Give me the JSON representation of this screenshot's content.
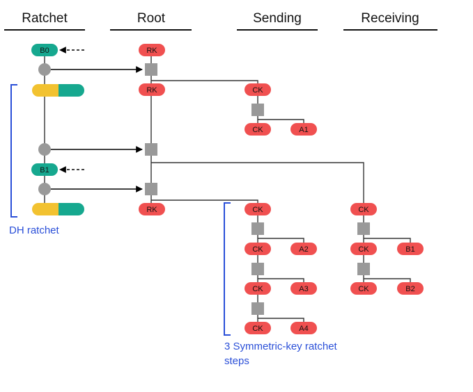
{
  "headers": {
    "ratchet": "Ratchet",
    "root": "Root",
    "sending": "Sending",
    "receiving": "Receiving"
  },
  "nodes": {
    "b0": "B0",
    "b1": "B1",
    "rk": "RK",
    "ck": "CK",
    "a1": "A1",
    "a2": "A2",
    "a3": "A3",
    "a4": "A4",
    "recv_b1": "B1",
    "recv_b2": "B2"
  },
  "annotations": {
    "dh_ratchet": "DH ratchet",
    "symmetric_line1": "3 Symmetric-key ratchet",
    "symmetric_line2": "steps"
  },
  "colors": {
    "key_red": "#f05050",
    "teal": "#16a88f",
    "yellow": "#f2c230",
    "kdf_gray": "#999999",
    "line": "#333333",
    "bracket_blue": "#2a4fd8"
  }
}
